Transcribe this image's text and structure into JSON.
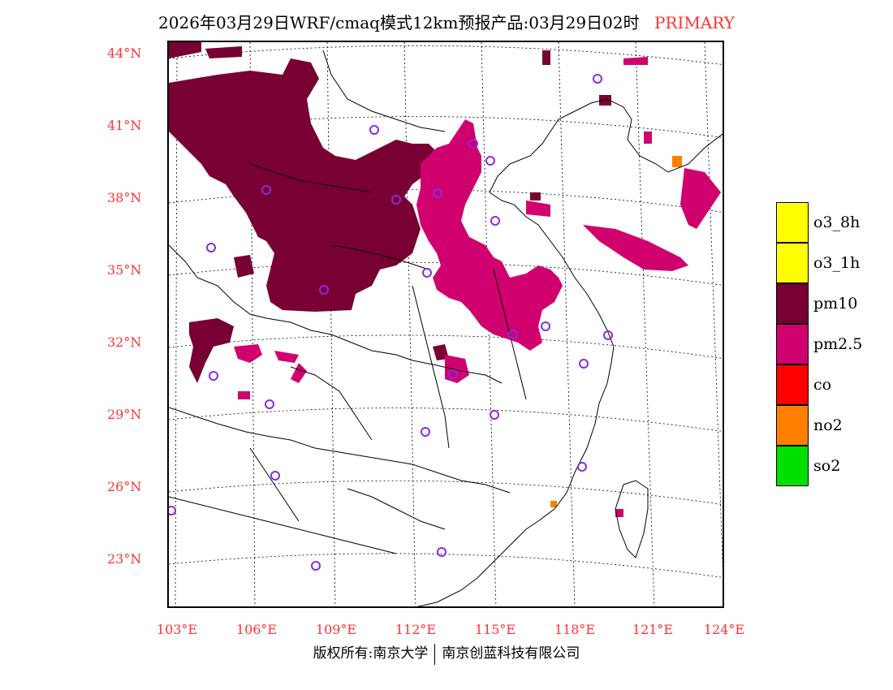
{
  "title": {
    "main": "2026年03月29日WRF/cmaq模式12km预报产品:03月29日02时",
    "tag": "PRIMARY"
  },
  "axes": {
    "lat_labels": [
      "44°N",
      "41°N",
      "38°N",
      "35°N",
      "32°N",
      "29°N",
      "26°N",
      "23°N"
    ],
    "lon_labels": [
      "103°E",
      "106°E",
      "109°E",
      "112°E",
      "115°E",
      "118°E",
      "121°E",
      "124°E"
    ]
  },
  "legend": {
    "items": [
      {
        "label": "o3_8h",
        "color": "#ffff00"
      },
      {
        "label": "o3_1h",
        "color": "#ffff00"
      },
      {
        "label": "pm10",
        "color": "#780032"
      },
      {
        "label": "pm2.5",
        "color": "#d0006e"
      },
      {
        "label": "co",
        "color": "#ff0000"
      },
      {
        "label": "no2",
        "color": "#ff7f00"
      },
      {
        "label": "so2",
        "color": "#00e000"
      }
    ]
  },
  "colors": {
    "pm10": "#780032",
    "pm25": "#d0006e",
    "no2": "#ff7f00",
    "station": "#8a2be2",
    "label": "#ff3333"
  },
  "footer": {
    "left": "版权所有:南京大学",
    "right": "南京创蓝科技有限公司"
  }
}
